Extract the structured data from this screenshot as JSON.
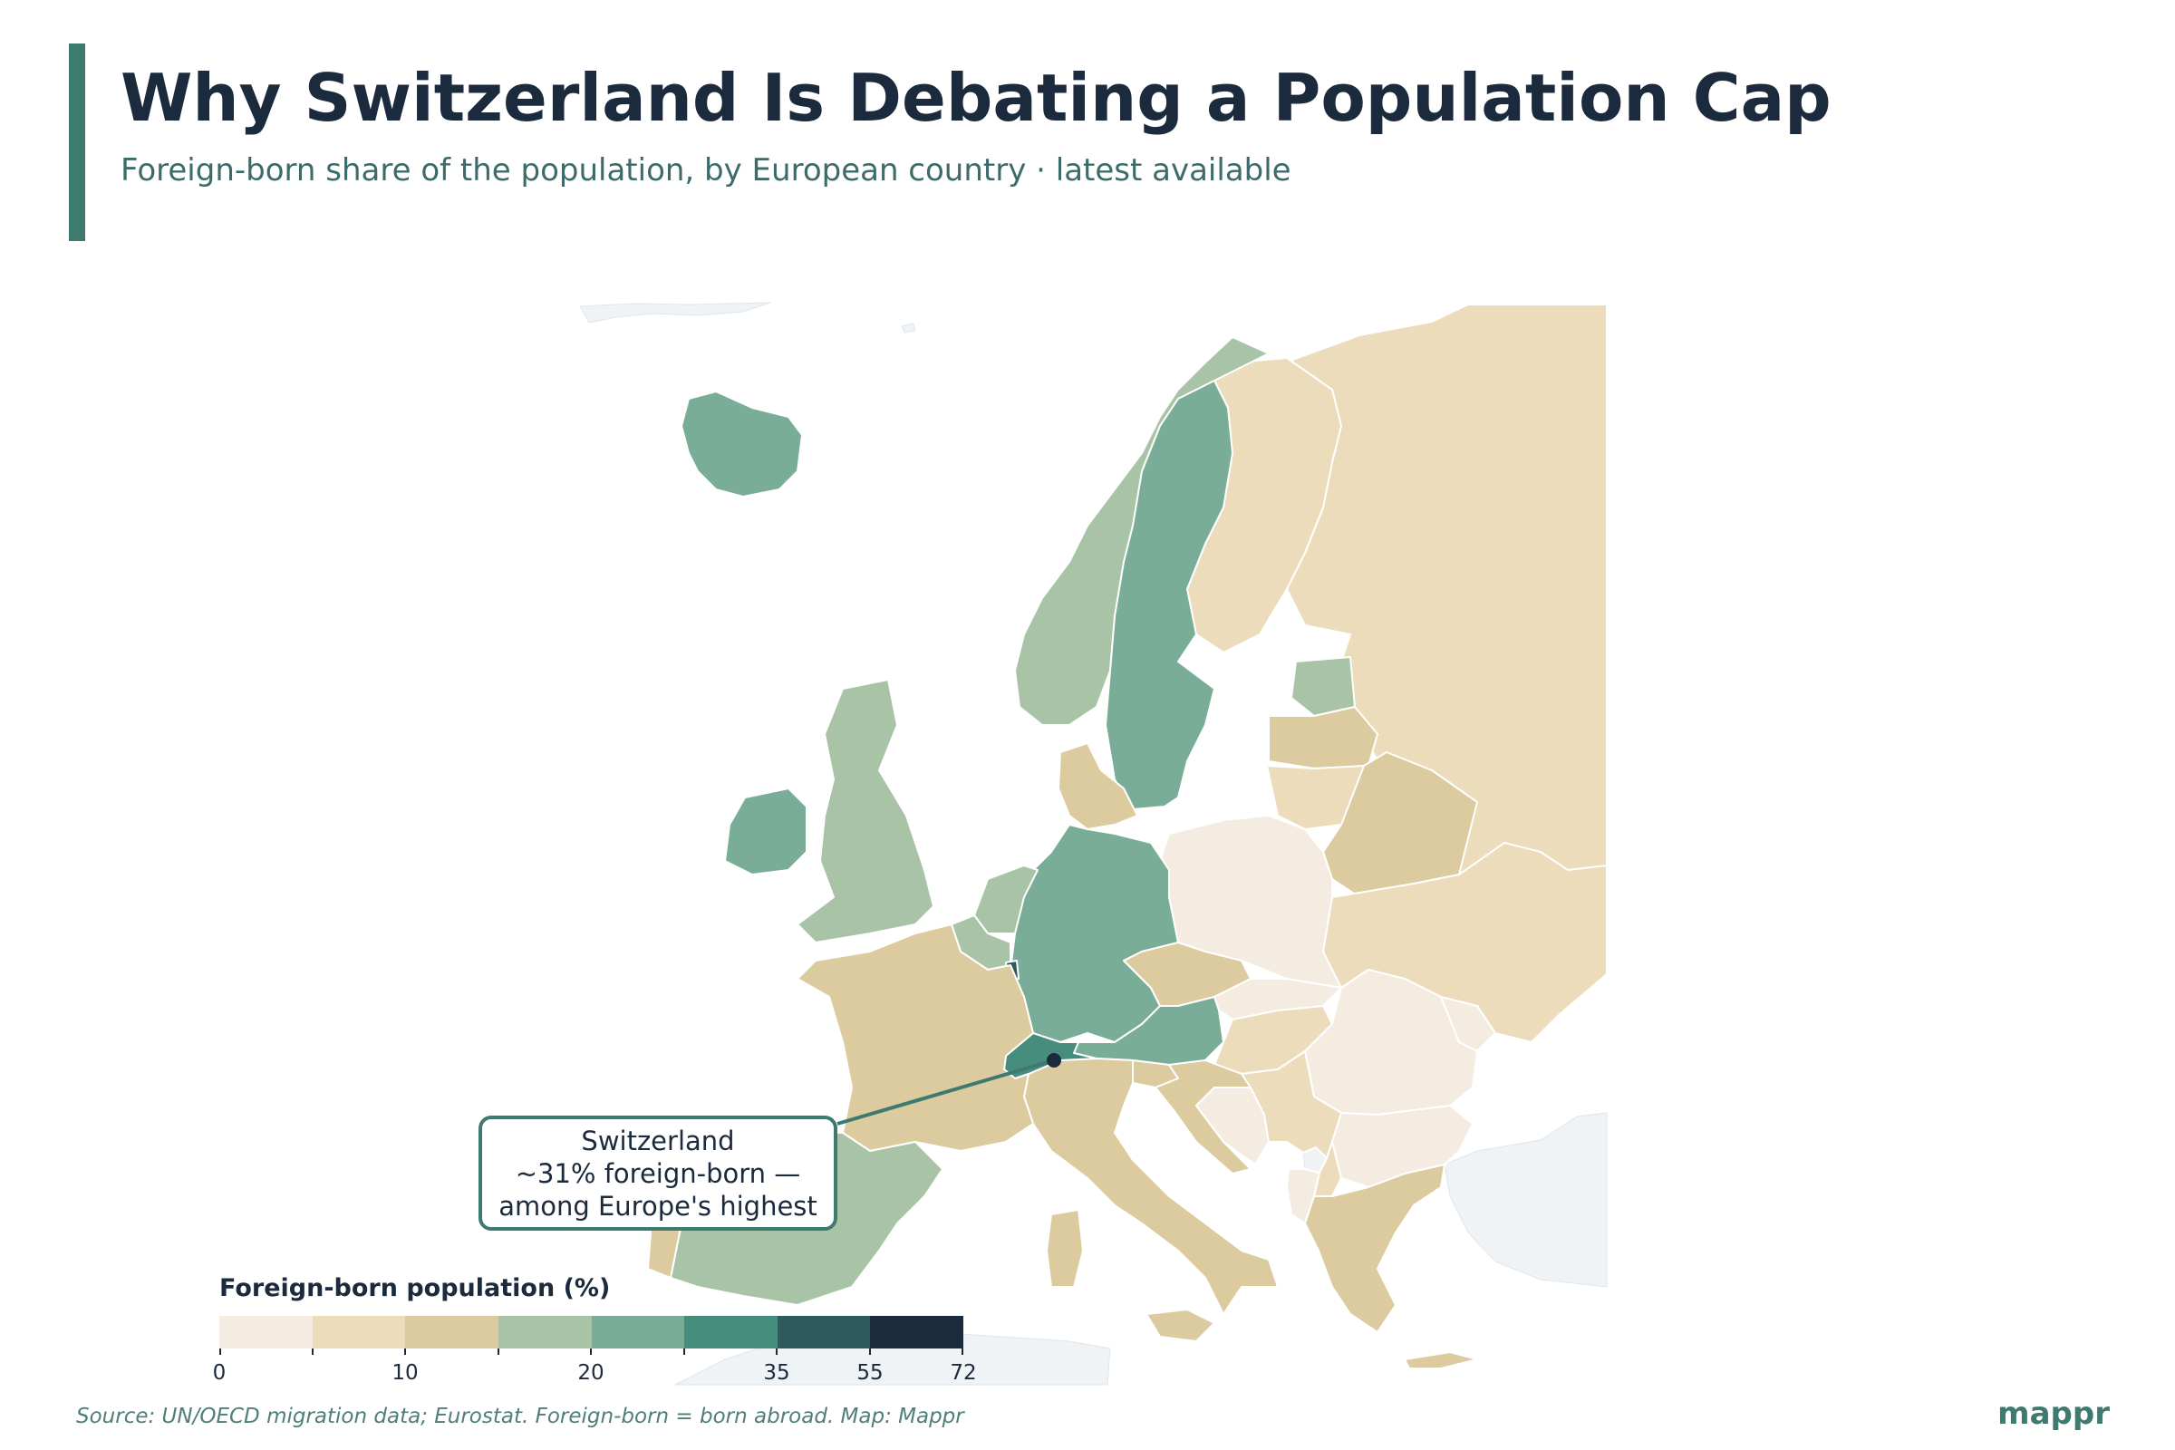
{
  "header": {
    "title": "Why Switzerland Is Debating a Population Cap",
    "subtitle": "Foreign-born share of the population, by European country · latest available"
  },
  "colors": {
    "accent": "#3f7a70",
    "title_text": "#1b2a3c",
    "no_data": "#eff3f6",
    "bins": [
      "#f5ece1",
      "#ecdcbb",
      "#dccb9f",
      "#a8c3a6",
      "#7aad98",
      "#468d7e",
      "#2e5a5e",
      "#1b2a3c"
    ]
  },
  "map": {
    "units": "% foreign-born",
    "countries": [
      {
        "name": "Iceland",
        "value": 21
      },
      {
        "name": "Norway",
        "value": 17
      },
      {
        "name": "Sweden",
        "value": 20
      },
      {
        "name": "Finland",
        "value": 8
      },
      {
        "name": "Russia",
        "value": 8
      },
      {
        "name": "Estonia",
        "value": 15
      },
      {
        "name": "Latvia",
        "value": 12
      },
      {
        "name": "Lithuania",
        "value": 6
      },
      {
        "name": "Belarus",
        "value": 11
      },
      {
        "name": "Poland",
        "value": 2
      },
      {
        "name": "Ukraine",
        "value": 8
      },
      {
        "name": "Denmark",
        "value": 13
      },
      {
        "name": "Germany",
        "value": 20
      },
      {
        "name": "Netherlands",
        "value": 15
      },
      {
        "name": "Belgium",
        "value": 18
      },
      {
        "name": "Luxembourg",
        "value": 48
      },
      {
        "name": "United Kingdom",
        "value": 15
      },
      {
        "name": "Ireland",
        "value": 21
      },
      {
        "name": "France",
        "value": 13
      },
      {
        "name": "Spain",
        "value": 17
      },
      {
        "name": "Portugal",
        "value": 12
      },
      {
        "name": "Switzerland",
        "value": 31
      },
      {
        "name": "Austria",
        "value": 22
      },
      {
        "name": "Czechia",
        "value": 11
      },
      {
        "name": "Slovakia",
        "value": 4
      },
      {
        "name": "Hungary",
        "value": 6
      },
      {
        "name": "Romania",
        "value": 4
      },
      {
        "name": "Moldova",
        "value": 4
      },
      {
        "name": "Slovenia",
        "value": 13
      },
      {
        "name": "Croatia",
        "value": 12
      },
      {
        "name": "Bosnia and Herzegovina",
        "value": 1
      },
      {
        "name": "Serbia",
        "value": 9
      },
      {
        "name": "Bulgaria",
        "value": 3
      },
      {
        "name": "North Macedonia",
        "value": 6
      },
      {
        "name": "Albania",
        "value": 2
      },
      {
        "name": "Greece",
        "value": 12
      },
      {
        "name": "Italy",
        "value": 11
      }
    ],
    "no_data": [
      "Kosovo",
      "Turkey",
      "North Africa",
      "Greenland",
      "Svalbard"
    ],
    "marker": {
      "country": "Switzerland"
    },
    "callout": {
      "lines": [
        "Switzerland",
        "~31% foreign-born —",
        "among Europe's highest"
      ]
    }
  },
  "legend": {
    "title": "Foreign-born population (%)",
    "labels": [
      "0",
      "10",
      "20",
      "35",
      "55",
      "72"
    ]
  },
  "footer": {
    "source": "Source: UN/OECD migration data; Eurostat. Foreign-born = born abroad. Map: Mappr",
    "brand": "mappr"
  }
}
